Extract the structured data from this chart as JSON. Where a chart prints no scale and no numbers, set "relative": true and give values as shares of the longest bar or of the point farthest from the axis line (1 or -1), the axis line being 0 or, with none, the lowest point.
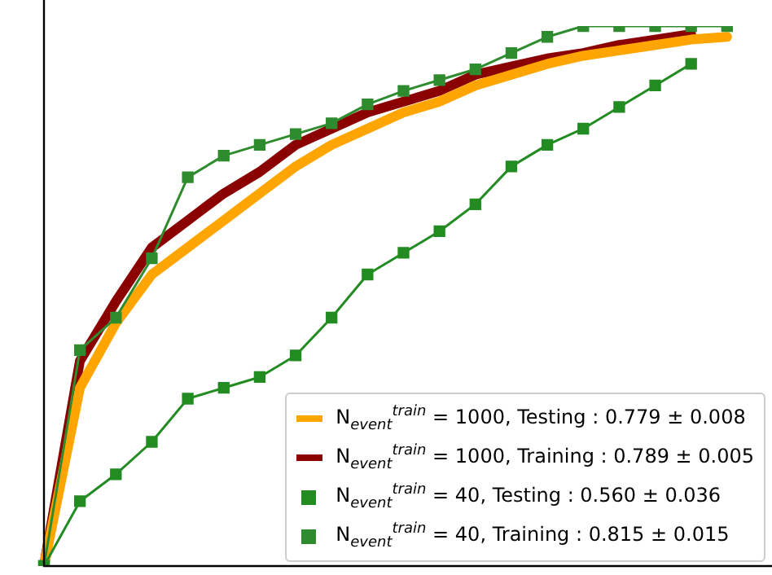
{
  "chart_data": {
    "type": "line",
    "relative": true,
    "legend": "bottom right",
    "grid": false,
    "categories": [
      null,
      null,
      null,
      null,
      null,
      null,
      null,
      null,
      null,
      null,
      null,
      null,
      null,
      null,
      null,
      null,
      null,
      null,
      null,
      null,
      null
    ],
    "series": [
      {
        "name": "N$_{event}$$^{train}$ = 1000, Testing : 0.779 ± 0.008",
        "color": "#ffa500",
        "marker": "none",
        "values": [
          0,
          0.33,
          0.45,
          0.54,
          0.59,
          0.64,
          0.69,
          0.74,
          0.78,
          0.81,
          0.84,
          0.86,
          0.89,
          0.91,
          0.93,
          0.945,
          0.955,
          0.965,
          0.975,
          0.98,
          null
        ]
      },
      {
        "name": "N$_{event}$$^{train}$ = 1000, Training : 0.789 ± 0.005",
        "color": "#8b0000",
        "marker": "none",
        "values": [
          0,
          0.38,
          0.49,
          0.59,
          0.64,
          0.69,
          0.73,
          0.78,
          0.81,
          0.84,
          0.86,
          0.88,
          0.91,
          0.925,
          0.94,
          0.95,
          0.965,
          0.975,
          0.985,
          null,
          null
        ]
      },
      {
        "name": "N$_{event}$$^{train}$ = 40, Testing : 0.560 ± 0.036",
        "color": "#228b22",
        "marker": "square",
        "values": [
          0,
          0.12,
          0.17,
          0.23,
          0.31,
          0.33,
          0.35,
          0.39,
          0.46,
          0.54,
          0.58,
          0.62,
          0.67,
          0.74,
          0.78,
          0.81,
          0.85,
          0.89,
          0.93,
          null,
          null
        ]
      },
      {
        "name": "N$_{event}$$^{train}$ = 40, Training : 0.815 ± 0.015",
        "color": "#2e8b2e",
        "marker": "square",
        "values": [
          0,
          0.4,
          0.46,
          0.57,
          0.72,
          0.76,
          0.78,
          0.8,
          0.82,
          0.855,
          0.88,
          0.9,
          0.92,
          0.95,
          0.98,
          1,
          1,
          1,
          1,
          1,
          null
        ]
      }
    ]
  }
}
